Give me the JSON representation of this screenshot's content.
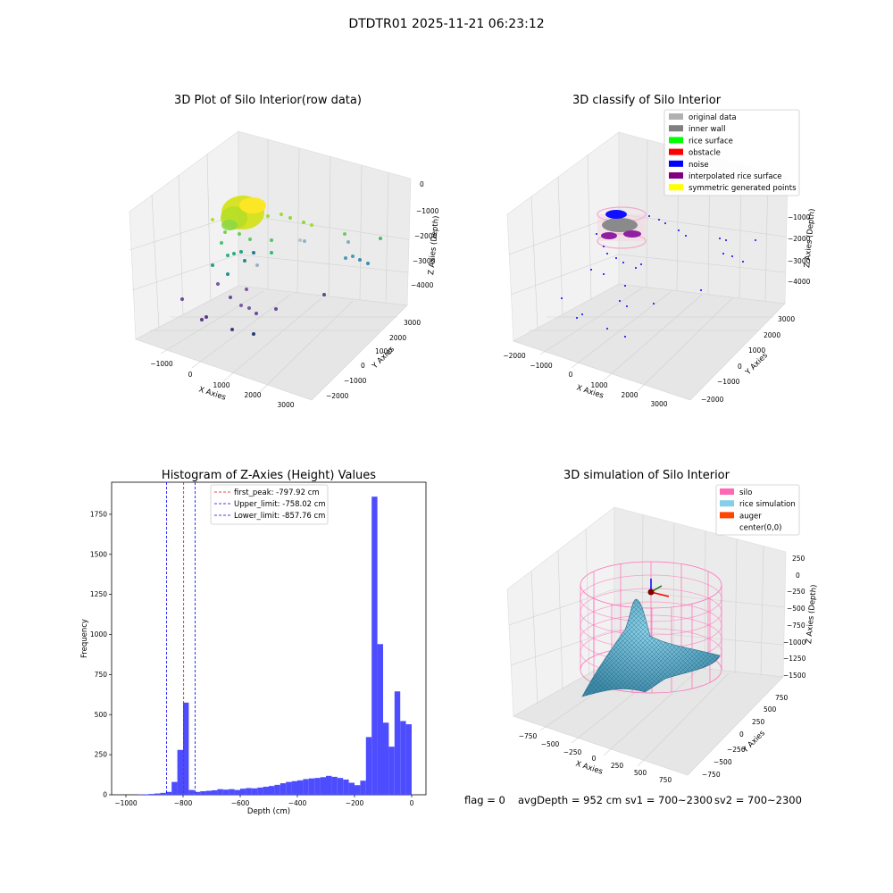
{
  "figure_title": "DTDTR01 2025-11-21 06:23:12",
  "status": {
    "flag": "flag = 0",
    "avg_depth": "avgDepth = 952 cm",
    "sv1": "sv1 = 700~2300",
    "sv2": "sv2 = 700~2300"
  },
  "chart_data": [
    {
      "type": "scatter",
      "projection": "3d",
      "title": "3D Plot of Silo Interior(row data)",
      "xlabel": "X Axies",
      "ylabel": "Y Axies",
      "zlabel": "Z Axies (Depth)",
      "x_ticks": [
        "−1000",
        "0",
        "1000",
        "2000",
        "3000"
      ],
      "y_ticks": [
        "−2000",
        "−1000",
        "0",
        "1000",
        "2000",
        "3000"
      ],
      "z_ticks": [
        "0",
        "−1000",
        "−2000",
        "−3000",
        "−4000"
      ],
      "colormap": "viridis",
      "points_note": "dense yellow-green cluster near (0,0,-800); sparse points spread downward to about -4000"
    },
    {
      "type": "scatter",
      "projection": "3d",
      "title": "3D classify of Silo Interior",
      "xlabel": "X Axies",
      "ylabel": "Y Axies",
      "zlabel": "Z Axies (Depth)",
      "x_ticks": [
        "−2000",
        "−1000",
        "0",
        "1000",
        "2000",
        "3000"
      ],
      "y_ticks": [
        "−2000",
        "−1000",
        "0",
        "1000",
        "2000",
        "3000"
      ],
      "z_ticks": [
        "−1000",
        "−2000",
        "−3000",
        "−4000"
      ],
      "legend": [
        {
          "label": "original data",
          "color": "#b0b0b0"
        },
        {
          "label": "inner wall",
          "color": "#808080"
        },
        {
          "label": "rice surface",
          "color": "#00ff00"
        },
        {
          "label": "obstacle",
          "color": "#ff0000"
        },
        {
          "label": "noise",
          "color": "#0000ff"
        },
        {
          "label": "interpolated rice surface",
          "color": "#800080"
        },
        {
          "label": "symmetric generated points",
          "color": "#ffff00"
        }
      ],
      "legend_position": "top-right"
    },
    {
      "type": "bar",
      "subtype": "histogram",
      "title": "Histogram of Z-Axies (Height) Values",
      "xlabel": "Depth (cm)",
      "ylabel": "Frequency",
      "xlim": [
        -1050,
        50
      ],
      "ylim": [
        0,
        1950
      ],
      "x_ticks": [
        "−1000",
        "−800",
        "−600",
        "−400",
        "−200",
        "0"
      ],
      "y_ticks": [
        "0",
        "250",
        "500",
        "750",
        "1000",
        "1250",
        "1500",
        "1750"
      ],
      "bar_color": "#4d4dff",
      "bins": [
        {
          "x": -960,
          "w": 20,
          "v": 2
        },
        {
          "x": -940,
          "w": 20,
          "v": 3
        },
        {
          "x": -920,
          "w": 20,
          "v": 5
        },
        {
          "x": -900,
          "w": 20,
          "v": 8
        },
        {
          "x": -880,
          "w": 20,
          "v": 12
        },
        {
          "x": -860,
          "w": 20,
          "v": 18
        },
        {
          "x": -840,
          "w": 20,
          "v": 80
        },
        {
          "x": -820,
          "w": 20,
          "v": 280
        },
        {
          "x": -800,
          "w": 20,
          "v": 575
        },
        {
          "x": -780,
          "w": 20,
          "v": 30
        },
        {
          "x": -760,
          "w": 20,
          "v": 18
        },
        {
          "x": -740,
          "w": 20,
          "v": 22
        },
        {
          "x": -720,
          "w": 20,
          "v": 25
        },
        {
          "x": -700,
          "w": 20,
          "v": 28
        },
        {
          "x": -680,
          "w": 20,
          "v": 35
        },
        {
          "x": -660,
          "w": 20,
          "v": 32
        },
        {
          "x": -640,
          "w": 20,
          "v": 35
        },
        {
          "x": -620,
          "w": 20,
          "v": 30
        },
        {
          "x": -600,
          "w": 20,
          "v": 38
        },
        {
          "x": -580,
          "w": 20,
          "v": 42
        },
        {
          "x": -560,
          "w": 20,
          "v": 40
        },
        {
          "x": -540,
          "w": 20,
          "v": 45
        },
        {
          "x": -520,
          "w": 20,
          "v": 50
        },
        {
          "x": -500,
          "w": 20,
          "v": 55
        },
        {
          "x": -480,
          "w": 20,
          "v": 62
        },
        {
          "x": -460,
          "w": 20,
          "v": 72
        },
        {
          "x": -440,
          "w": 20,
          "v": 80
        },
        {
          "x": -420,
          "w": 20,
          "v": 85
        },
        {
          "x": -400,
          "w": 20,
          "v": 90
        },
        {
          "x": -380,
          "w": 20,
          "v": 98
        },
        {
          "x": -360,
          "w": 20,
          "v": 102
        },
        {
          "x": -340,
          "w": 20,
          "v": 105
        },
        {
          "x": -320,
          "w": 20,
          "v": 110
        },
        {
          "x": -300,
          "w": 20,
          "v": 118
        },
        {
          "x": -280,
          "w": 20,
          "v": 112
        },
        {
          "x": -260,
          "w": 20,
          "v": 105
        },
        {
          "x": -240,
          "w": 20,
          "v": 95
        },
        {
          "x": -220,
          "w": 20,
          "v": 75
        },
        {
          "x": -200,
          "w": 20,
          "v": 60
        },
        {
          "x": -180,
          "w": 20,
          "v": 88
        },
        {
          "x": -160,
          "w": 20,
          "v": 360
        },
        {
          "x": -140,
          "w": 20,
          "v": 1860
        },
        {
          "x": -120,
          "w": 20,
          "v": 940
        },
        {
          "x": -100,
          "w": 20,
          "v": 450
        },
        {
          "x": -80,
          "w": 20,
          "v": 300
        },
        {
          "x": -60,
          "w": 20,
          "v": 645
        },
        {
          "x": -40,
          "w": 20,
          "v": 460
        },
        {
          "x": -20,
          "w": 20,
          "v": 440
        }
      ],
      "vlines": [
        {
          "x": -797.92,
          "color": "#ff0000",
          "label": "first_peak: -797.92 cm"
        },
        {
          "x": -758.02,
          "color": "#0000ff",
          "label": "Upper_limit: -758.02 cm"
        },
        {
          "x": -857.76,
          "color": "#0000ff",
          "label": "Lower_limit: -857.76 cm"
        }
      ],
      "legend_position": "top-center"
    },
    {
      "type": "surface",
      "projection": "3d",
      "title": "3D simulation of Silo Interior",
      "xlabel": "X Axies",
      "ylabel": "Y Axies",
      "zlabel": "Z Axies (Depth)",
      "x_ticks": [
        "−750",
        "−500",
        "−250",
        "0",
        "250",
        "500",
        "750"
      ],
      "y_ticks": [
        "−750",
        "−500",
        "−250",
        "0",
        "250",
        "500",
        "750"
      ],
      "z_ticks": [
        "250",
        "0",
        "−250",
        "−500",
        "−750",
        "−1000",
        "−1250",
        "−1500"
      ],
      "legend": [
        {
          "label": "silo",
          "color": "#ff69b4"
        },
        {
          "label": "rice simulation",
          "color": "#87ceeb"
        },
        {
          "label": "auger",
          "color": "#ff4500"
        },
        {
          "label": "center(0,0)",
          "color": "#ffffff"
        }
      ],
      "legend_position": "top-right"
    }
  ]
}
